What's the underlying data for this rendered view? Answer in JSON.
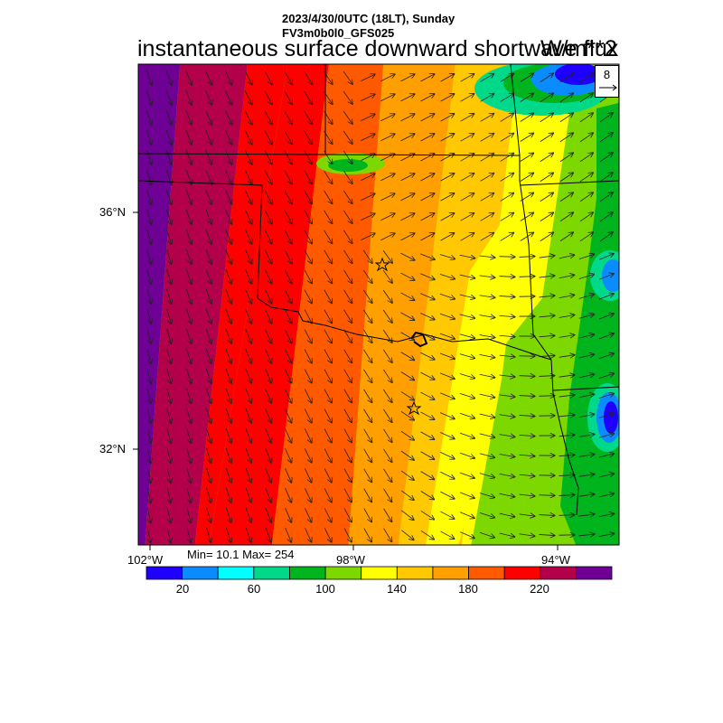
{
  "header": {
    "line1": "2023/4/30/0UTC (18LT), Sunday",
    "line2": "FV3m0b0l0_GFS025",
    "title": "instantaneous surface downward shortwave flux",
    "units": "W/m**2"
  },
  "axes": {
    "lat_labels": [
      "36°N",
      "32°N"
    ],
    "lon_labels": [
      "102°W",
      "98°W",
      "94°W"
    ]
  },
  "stats": {
    "text": "Min= 10.1 Max= 254"
  },
  "vector_reference": {
    "value": "8"
  },
  "colorbar": {
    "colors": [
      "#1f00ff",
      "#0a8cff",
      "#00ffff",
      "#00d98a",
      "#00b41e",
      "#7dd800",
      "#ffff00",
      "#ffc800",
      "#ffa000",
      "#ff5a00",
      "#ff0000",
      "#b4004b",
      "#6e0096"
    ],
    "tick_labels": [
      "20",
      "60",
      "100",
      "140",
      "180",
      "220"
    ]
  },
  "markers": [
    "star",
    "star"
  ]
}
